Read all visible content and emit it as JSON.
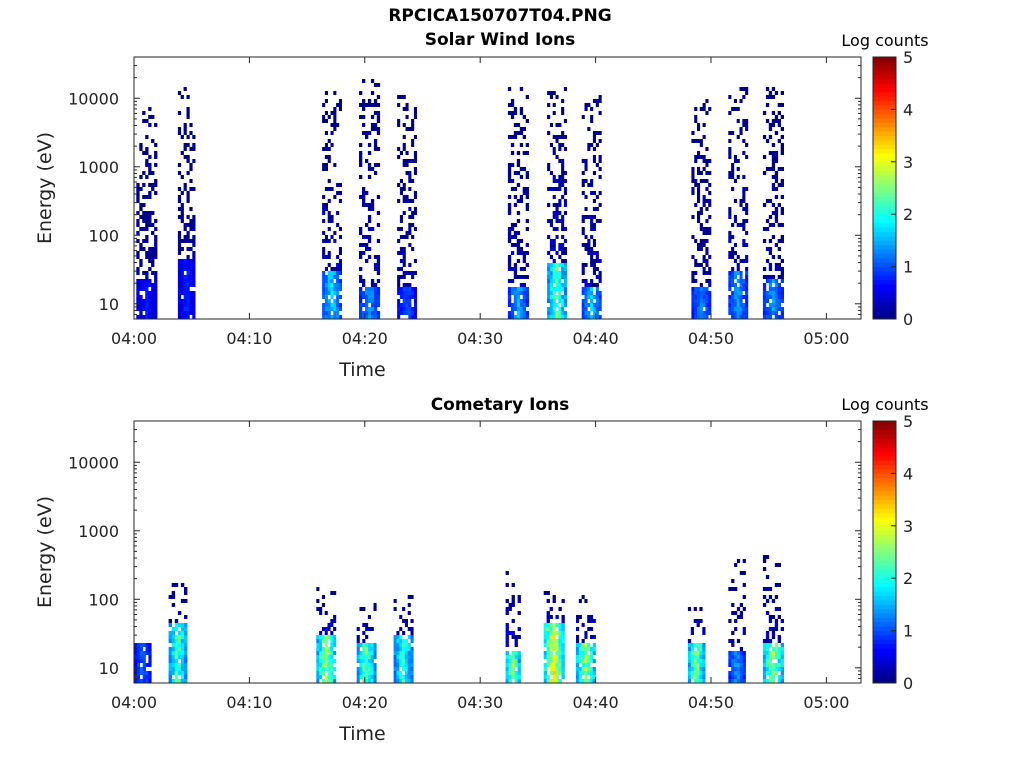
{
  "figure": {
    "title": "RPCICA150707T04.PNG"
  },
  "colorbar": {
    "title": "Log counts",
    "ticks": [
      "0",
      "1",
      "2",
      "3",
      "4",
      "5"
    ],
    "range": [
      0,
      5
    ],
    "colormap": "jet",
    "colormap_stops": [
      "#00008f",
      "#0000ff",
      "#00ffff",
      "#ffff00",
      "#ff0000",
      "#800000"
    ]
  },
  "chart_data": [
    {
      "type": "heatmap",
      "title": "Solar Wind Ions",
      "xlabel": "Time",
      "ylabel": "Energy (eV)",
      "y_scale": "log",
      "ylim": [
        6,
        40000
      ],
      "xlim": [
        "04:00",
        "05:03"
      ],
      "x_ticks": [
        "04:00",
        "04:10",
        "04:20",
        "04:30",
        "04:40",
        "04:50",
        "05:00"
      ],
      "y_ticks": [
        "10",
        "100",
        "1000",
        "10000"
      ],
      "colorbar_label": "Log counts",
      "color_range": [
        0,
        5
      ],
      "bursts": [
        {
          "start": "04:00.2",
          "end": "04:02.0",
          "max_energy_ev": 8000,
          "peak_energy_ev": 15,
          "peak_log_counts": 0.8
        },
        {
          "start": "04:03.8",
          "end": "04:05.3",
          "max_energy_ev": 15000,
          "peak_energy_ev": 30,
          "peak_log_counts": 0.9
        },
        {
          "start": "04:16.3",
          "end": "04:18.0",
          "max_energy_ev": 15000,
          "peak_energy_ev": 20,
          "peak_log_counts": 1.9
        },
        {
          "start": "04:19.5",
          "end": "04:21.3",
          "max_energy_ev": 20000,
          "peak_energy_ev": 12,
          "peak_log_counts": 1.6
        },
        {
          "start": "04:22.8",
          "end": "04:24.5",
          "max_energy_ev": 12000,
          "peak_energy_ev": 12,
          "peak_log_counts": 1.2
        },
        {
          "start": "04:32.4",
          "end": "04:34.2",
          "max_energy_ev": 15000,
          "peak_energy_ev": 12,
          "peak_log_counts": 1.7
        },
        {
          "start": "04:35.8",
          "end": "04:37.5",
          "max_energy_ev": 15000,
          "peak_energy_ev": 25,
          "peak_log_counts": 2.6
        },
        {
          "start": "04:38.8",
          "end": "04:40.5",
          "max_energy_ev": 12000,
          "peak_energy_ev": 12,
          "peak_log_counts": 1.8
        },
        {
          "start": "04:48.3",
          "end": "04:50.0",
          "max_energy_ev": 10000,
          "peak_energy_ev": 12,
          "peak_log_counts": 1.5
        },
        {
          "start": "04:51.5",
          "end": "04:53.2",
          "max_energy_ev": 15000,
          "peak_energy_ev": 20,
          "peak_log_counts": 1.6
        },
        {
          "start": "04:54.5",
          "end": "04:56.3",
          "max_energy_ev": 15000,
          "peak_energy_ev": 15,
          "peak_log_counts": 1.6
        }
      ]
    },
    {
      "type": "heatmap",
      "title": "Cometary Ions",
      "xlabel": "Time",
      "ylabel": "Energy (eV)",
      "y_scale": "log",
      "ylim": [
        6,
        40000
      ],
      "xlim": [
        "04:00",
        "05:03"
      ],
      "x_ticks": [
        "04:00",
        "04:10",
        "04:20",
        "04:30",
        "04:40",
        "04:50",
        "05:00"
      ],
      "y_ticks": [
        "10",
        "100",
        "1000",
        "10000"
      ],
      "colorbar_label": "Log counts",
      "color_range": [
        0,
        5
      ],
      "bursts": [
        {
          "start": "04:00.0",
          "end": "04:01.5",
          "max_energy_ev": 30,
          "peak_energy_ev": 15,
          "peak_log_counts": 1.3
        },
        {
          "start": "04:03.0",
          "end": "04:04.6",
          "max_energy_ev": 180,
          "peak_energy_ev": 30,
          "peak_log_counts": 2.6
        },
        {
          "start": "04:15.8",
          "end": "04:17.5",
          "max_energy_ev": 170,
          "peak_energy_ev": 20,
          "peak_log_counts": 3.0
        },
        {
          "start": "04:19.3",
          "end": "04:21.0",
          "max_energy_ev": 90,
          "peak_energy_ev": 15,
          "peak_log_counts": 2.7
        },
        {
          "start": "04:22.5",
          "end": "04:24.2",
          "max_energy_ev": 150,
          "peak_energy_ev": 20,
          "peak_log_counts": 2.4
        },
        {
          "start": "04:32.2",
          "end": "04:33.5",
          "max_energy_ev": 280,
          "peak_energy_ev": 12,
          "peak_log_counts": 2.9
        },
        {
          "start": "04:35.5",
          "end": "04:37.3",
          "max_energy_ev": 150,
          "peak_energy_ev": 30,
          "peak_log_counts": 3.4
        },
        {
          "start": "04:38.3",
          "end": "04:40.0",
          "max_energy_ev": 120,
          "peak_energy_ev": 15,
          "peak_log_counts": 3.0
        },
        {
          "start": "04:48.0",
          "end": "04:49.5",
          "max_energy_ev": 100,
          "peak_energy_ev": 15,
          "peak_log_counts": 2.9
        },
        {
          "start": "04:51.5",
          "end": "04:53.0",
          "max_energy_ev": 400,
          "peak_energy_ev": 12,
          "peak_log_counts": 1.6
        },
        {
          "start": "04:54.5",
          "end": "04:56.3",
          "max_energy_ev": 450,
          "peak_energy_ev": 15,
          "peak_log_counts": 3.0
        }
      ]
    }
  ]
}
